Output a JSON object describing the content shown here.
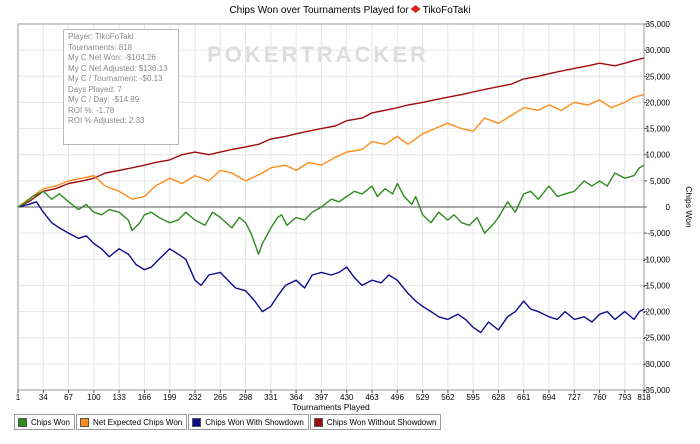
{
  "chart_data": {
    "type": "line",
    "title_prefix": "Chips Won over Tournaments Played for",
    "player_name": "TikoFoTaki",
    "watermark": "POKERTRACKER",
    "xlabel": "Tournaments Played",
    "ylabel": "Chips Won",
    "xlim": [
      1,
      818
    ],
    "ylim": [
      -35000,
      35000
    ],
    "x_ticks": [
      1,
      34,
      67,
      100,
      133,
      166,
      199,
      232,
      265,
      298,
      331,
      364,
      397,
      430,
      463,
      496,
      529,
      562,
      595,
      628,
      661,
      694,
      727,
      760,
      793,
      818
    ],
    "y_ticks": [
      35000,
      30000,
      25000,
      20000,
      15000,
      10000,
      5000,
      0,
      -5000,
      -10000,
      -15000,
      -20000,
      -25000,
      -30000,
      -35000
    ],
    "y_tick_labels": [
      "35,000",
      "30,000",
      "25,000",
      "20,000",
      "15,000",
      "10,000",
      "5,000",
      "0",
      "-5,000",
      "-10,000",
      "-15,000",
      "-20,000",
      "-25,000",
      "-30,000",
      "-35,000"
    ],
    "series": [
      {
        "name": "Chips Won",
        "color": "#2e8b1e",
        "x": [
          1,
          10,
          20,
          34,
          45,
          55,
          67,
          80,
          90,
          100,
          110,
          120,
          133,
          145,
          150,
          160,
          166,
          175,
          185,
          199,
          210,
          220,
          232,
          245,
          255,
          265,
          280,
          290,
          298,
          305,
          315,
          320,
          331,
          340,
          345,
          352,
          364,
          375,
          385,
          397,
          410,
          420,
          430,
          440,
          450,
          463,
          470,
          480,
          490,
          496,
          505,
          515,
          520,
          529,
          540,
          550,
          562,
          570,
          580,
          590,
          600,
          610,
          620,
          628,
          640,
          650,
          661,
          670,
          680,
          694,
          705,
          715,
          727,
          740,
          750,
          760,
          770,
          780,
          793,
          805,
          812,
          818
        ],
        "values": [
          0,
          800,
          2000,
          3000,
          1500,
          2500,
          1000,
          -500,
          500,
          -1000,
          -1500,
          -500,
          -1000,
          -2500,
          -4500,
          -3000,
          -1500,
          -1000,
          -2000,
          -3000,
          -2500,
          -1000,
          -2500,
          -3500,
          -1000,
          -2000,
          -4000,
          -2000,
          -3000,
          -5000,
          -9000,
          -7000,
          -4000,
          -2000,
          -1500,
          -3500,
          -2000,
          -2500,
          -1000,
          0,
          1500,
          1000,
          2000,
          3000,
          2500,
          4000,
          2000,
          3500,
          2500,
          4500,
          2000,
          500,
          2000,
          -1500,
          -3000,
          -1000,
          -2500,
          -1500,
          -3000,
          -3500,
          -2000,
          -5000,
          -3500,
          -2000,
          1000,
          -1000,
          2500,
          3000,
          1500,
          4000,
          2000,
          2500,
          3000,
          5000,
          4000,
          5000,
          4000,
          6500,
          5500,
          6000,
          7500,
          8000
        ]
      },
      {
        "name": "Net Expected Chips Won",
        "color": "#ff8c1a",
        "x": [
          1,
          15,
          34,
          50,
          67,
          85,
          100,
          115,
          133,
          150,
          166,
          180,
          199,
          215,
          232,
          250,
          265,
          280,
          298,
          320,
          331,
          350,
          364,
          380,
          397,
          415,
          430,
          450,
          463,
          480,
          496,
          510,
          529,
          545,
          562,
          580,
          595,
          610,
          628,
          645,
          661,
          680,
          694,
          710,
          727,
          745,
          760,
          775,
          793,
          805,
          818
        ],
        "values": [
          0,
          1500,
          3500,
          4000,
          5000,
          5500,
          6000,
          4000,
          3000,
          1500,
          2000,
          4000,
          5500,
          4500,
          6000,
          5000,
          7000,
          6500,
          5000,
          6500,
          7500,
          8000,
          7000,
          8500,
          8000,
          9500,
          10500,
          11000,
          12500,
          12000,
          13500,
          12000,
          14000,
          15000,
          16000,
          15000,
          14500,
          17000,
          16000,
          17500,
          19000,
          18500,
          19500,
          18500,
          20000,
          19500,
          20500,
          19000,
          20000,
          21000,
          21500
        ]
      },
      {
        "name": "Chips Won With Showdown",
        "color": "#0d0d8c",
        "x": [
          1,
          15,
          25,
          34,
          45,
          55,
          67,
          80,
          90,
          100,
          110,
          120,
          133,
          145,
          155,
          166,
          175,
          185,
          199,
          210,
          220,
          232,
          240,
          250,
          265,
          275,
          285,
          298,
          310,
          320,
          331,
          340,
          350,
          364,
          375,
          385,
          397,
          410,
          420,
          430,
          440,
          450,
          463,
          475,
          485,
          496,
          510,
          520,
          529,
          540,
          550,
          562,
          575,
          585,
          595,
          605,
          615,
          628,
          640,
          650,
          661,
          670,
          680,
          694,
          705,
          715,
          727,
          740,
          750,
          760,
          770,
          780,
          793,
          805,
          812,
          818
        ],
        "values": [
          0,
          500,
          1000,
          -1000,
          -3000,
          -4000,
          -5000,
          -6000,
          -5500,
          -7000,
          -8000,
          -9500,
          -8000,
          -9000,
          -11000,
          -12000,
          -11500,
          -10000,
          -8000,
          -9000,
          -10000,
          -14000,
          -15000,
          -13000,
          -12500,
          -14000,
          -15500,
          -16000,
          -18000,
          -20000,
          -19000,
          -17000,
          -15000,
          -14000,
          -15500,
          -13000,
          -12500,
          -13000,
          -12500,
          -11500,
          -13500,
          -15000,
          -14000,
          -14500,
          -13000,
          -14000,
          -16500,
          -18000,
          -19000,
          -20000,
          -21000,
          -21500,
          -20500,
          -21500,
          -23000,
          -24000,
          -22000,
          -23500,
          -21000,
          -20000,
          -18000,
          -19500,
          -20000,
          -21000,
          -21500,
          -20000,
          -21500,
          -21000,
          -22000,
          -20500,
          -20000,
          -21500,
          -20000,
          -21500,
          -20000,
          -19500
        ]
      },
      {
        "name": "Chips Won Without Showdown",
        "color": "#a00c0c",
        "x": [
          1,
          15,
          34,
          50,
          67,
          85,
          100,
          115,
          133,
          150,
          166,
          180,
          199,
          215,
          232,
          250,
          265,
          280,
          298,
          315,
          331,
          350,
          364,
          380,
          397,
          415,
          430,
          450,
          463,
          480,
          496,
          510,
          529,
          545,
          562,
          580,
          595,
          610,
          628,
          645,
          661,
          680,
          694,
          710,
          727,
          745,
          760,
          780,
          793,
          805,
          818
        ],
        "values": [
          0,
          1000,
          3000,
          3500,
          4500,
          5000,
          5500,
          6500,
          7000,
          7500,
          8000,
          8500,
          9000,
          10000,
          10500,
          10000,
          10500,
          11000,
          11500,
          12000,
          13000,
          13500,
          14000,
          14500,
          15000,
          15500,
          16500,
          17000,
          18000,
          18500,
          19000,
          19500,
          20000,
          20500,
          21000,
          21500,
          22000,
          22500,
          23000,
          23500,
          24500,
          25000,
          25500,
          26000,
          26500,
          27000,
          27500,
          27000,
          27500,
          28000,
          28500
        ]
      }
    ]
  },
  "stats": {
    "lines": [
      "Player: TikoFoTaki",
      "Tournaments: 818",
      "My C Net Won: -$104.26",
      "My C Net Adjusted: $136.13",
      "My C / Tournament: -$0.13",
      "Days Played: 7",
      "My C / Day: -$14.89",
      "ROI %: -1.78",
      "ROI % Adjusted: 2.33"
    ]
  },
  "legend": {
    "items": [
      {
        "label": "Chips Won",
        "color": "#2e8b1e"
      },
      {
        "label": "Net Expected Chips Won",
        "color": "#ff8c1a"
      },
      {
        "label": "Chips Won With Showdown",
        "color": "#0d0d8c"
      },
      {
        "label": "Chips Won Without Showdown",
        "color": "#a00c0c"
      }
    ]
  },
  "colors": {
    "grid": "#e6e6e6",
    "zero_line": "#555555",
    "frame": "#9a9a9a",
    "logo_red": "#d9261c"
  }
}
